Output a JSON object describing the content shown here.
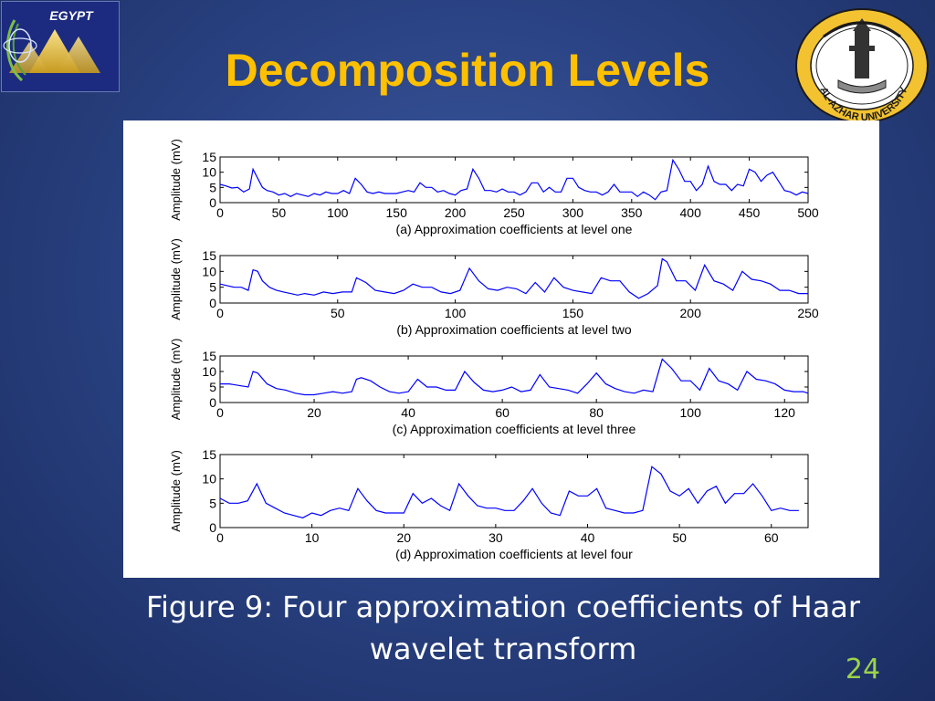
{
  "slide": {
    "title": "Decomposition Levels",
    "caption_line1": "Figure  9: Four approximation coefficients of Haar",
    "caption_line2": "wavelet transform",
    "page_number": "24",
    "logo_left_text": "EGYPT",
    "logo_right_text": "AL-AZHAR UNIVERSITY",
    "colors": {
      "title": "#ffc000",
      "page_number": "#9bd34a",
      "signal": "#0000ff"
    }
  },
  "chart_data": [
    {
      "type": "line",
      "xlabel": "(a) Approximation coefficients at level one",
      "ylabel": "Amplitude (mV)",
      "xlim": [
        0,
        500
      ],
      "ylim": [
        0,
        15
      ],
      "xticks": [
        0,
        50,
        100,
        150,
        200,
        250,
        300,
        350,
        400,
        450,
        500
      ],
      "yticks": [
        0,
        5,
        10,
        15
      ],
      "series": [
        {
          "x": [
            0,
            5,
            10,
            15,
            20,
            25,
            28,
            32,
            36,
            40,
            45,
            50,
            55,
            60,
            65,
            70,
            75,
            80,
            85,
            90,
            95,
            100,
            105,
            110,
            115,
            120,
            125,
            130,
            135,
            140,
            145,
            150,
            155,
            160,
            165,
            170,
            175,
            180,
            185,
            190,
            195,
            200,
            205,
            210,
            215,
            220,
            225,
            230,
            235,
            240,
            245,
            250,
            255,
            260,
            265,
            270,
            275,
            280,
            285,
            290,
            295,
            300,
            305,
            310,
            315,
            320,
            325,
            330,
            335,
            340,
            345,
            350,
            355,
            360,
            365,
            370,
            375,
            380,
            385,
            390,
            395,
            400,
            405,
            410,
            415,
            420,
            425,
            430,
            435,
            440,
            445,
            450,
            455,
            460,
            465,
            470,
            475,
            480,
            485,
            490,
            495,
            500
          ],
          "y": [
            6,
            5.5,
            4.8,
            5,
            3.5,
            4.5,
            11,
            8,
            5,
            4,
            3.5,
            2.5,
            3,
            2,
            3,
            2.5,
            2,
            3,
            2.5,
            3.5,
            3,
            3,
            4,
            3,
            8,
            6,
            3.5,
            3,
            3.5,
            3,
            3,
            3,
            3.5,
            4,
            3.5,
            6.5,
            5,
            5,
            3.5,
            4,
            3,
            2.5,
            4,
            4.5,
            11,
            8,
            4,
            4,
            3.5,
            4.5,
            3.5,
            3.5,
            2.5,
            3.5,
            6.5,
            6.5,
            3.5,
            5,
            3.5,
            3.5,
            8,
            8,
            5,
            4,
            3.5,
            3.5,
            2.5,
            3.5,
            6,
            3.5,
            3.5,
            3.5,
            2,
            3.5,
            2.5,
            1,
            3.5,
            4,
            14,
            11,
            7,
            7,
            4,
            6,
            12,
            7,
            6,
            6,
            4,
            6,
            5.5,
            11,
            10,
            7,
            9,
            10,
            7,
            4,
            3.5,
            2.5,
            3.5,
            3
          ]
        }
      ]
    },
    {
      "type": "line",
      "xlabel": "(b) Approximation coefficients at level two",
      "ylabel": "Amplitude (mV)",
      "xlim": [
        0,
        250
      ],
      "ylim": [
        0,
        15
      ],
      "xticks": [
        0,
        50,
        100,
        150,
        200,
        250
      ],
      "yticks": [
        0,
        5,
        10,
        15
      ],
      "series": [
        {
          "x": [
            0,
            3,
            6,
            9,
            12,
            14,
            16,
            18,
            21,
            24,
            27,
            30,
            33,
            36,
            40,
            44,
            48,
            52,
            56,
            58,
            62,
            66,
            70,
            74,
            78,
            82,
            86,
            90,
            94,
            98,
            102,
            106,
            110,
            114,
            118,
            122,
            126,
            130,
            134,
            138,
            142,
            146,
            150,
            154,
            158,
            162,
            166,
            170,
            174,
            178,
            182,
            186,
            188,
            190,
            194,
            198,
            202,
            206,
            210,
            214,
            218,
            222,
            226,
            230,
            234,
            238,
            242,
            246,
            250
          ],
          "y": [
            6,
            5.5,
            5,
            5,
            4,
            10.5,
            10,
            7,
            5,
            4,
            3.5,
            3,
            2.5,
            3,
            2.5,
            3.5,
            3,
            3.5,
            3.5,
            8,
            6.5,
            4,
            3.5,
            3,
            4,
            6,
            5,
            5,
            3.5,
            3,
            4,
            11,
            7,
            4.5,
            4,
            5,
            4.5,
            3,
            6.5,
            3.5,
            8,
            5,
            4,
            3.5,
            3,
            8,
            7,
            7,
            3.5,
            1.5,
            3,
            5.5,
            14,
            13,
            7,
            7,
            4,
            12,
            7,
            6,
            4,
            10,
            7.5,
            7,
            6,
            4,
            4,
            3,
            3
          ]
        }
      ]
    },
    {
      "type": "line",
      "xlabel": "(c) Approximation coefficients at level three",
      "ylabel": "Amplitude (mV)",
      "xlim": [
        0,
        125
      ],
      "ylim": [
        0,
        15
      ],
      "xticks": [
        0,
        20,
        40,
        60,
        80,
        100,
        120
      ],
      "yticks": [
        0,
        5,
        10,
        15
      ],
      "series": [
        {
          "x": [
            0,
            2,
            4,
            6,
            7,
            8,
            10,
            12,
            14,
            16,
            18,
            20,
            22,
            24,
            26,
            28,
            29,
            30,
            32,
            34,
            36,
            38,
            40,
            42,
            44,
            46,
            48,
            50,
            52,
            54,
            56,
            58,
            60,
            62,
            64,
            66,
            68,
            70,
            72,
            74,
            76,
            78,
            80,
            82,
            84,
            86,
            88,
            90,
            92,
            94,
            96,
            98,
            100,
            102,
            104,
            106,
            108,
            110,
            112,
            114,
            116,
            118,
            120,
            122,
            124,
            125
          ],
          "y": [
            6,
            6,
            5.5,
            5,
            10,
            9.5,
            6,
            4.5,
            4,
            3,
            2.5,
            2.5,
            3,
            3.5,
            3,
            3.5,
            7.5,
            8,
            7,
            5,
            3.5,
            3,
            3.5,
            7.5,
            5,
            5,
            4,
            4,
            10,
            6.5,
            4,
            3.5,
            4,
            5,
            3.5,
            4,
            9,
            5,
            4.5,
            4,
            3,
            6,
            9.5,
            6,
            4.5,
            3.5,
            3,
            4,
            3.5,
            14,
            11,
            7,
            7,
            4,
            11,
            7,
            6,
            4,
            10,
            7.5,
            7,
            6,
            4,
            3.5,
            3.5,
            3
          ]
        }
      ]
    },
    {
      "type": "line",
      "xlabel": "(d) Approximation coefficients at level four",
      "ylabel": "Amplitude (mV)",
      "xlim": [
        0,
        64
      ],
      "ylim": [
        0,
        15
      ],
      "xticks": [
        0,
        10,
        20,
        30,
        40,
        50,
        60
      ],
      "yticks": [
        0,
        5,
        10,
        15
      ],
      "series": [
        {
          "x": [
            0,
            1,
            2,
            3,
            4,
            5,
            6,
            7,
            8,
            9,
            10,
            11,
            12,
            13,
            14,
            15,
            16,
            17,
            18,
            19,
            20,
            21,
            22,
            23,
            24,
            25,
            26,
            27,
            28,
            29,
            30,
            31,
            32,
            33,
            34,
            35,
            36,
            37,
            38,
            39,
            40,
            41,
            42,
            43,
            44,
            45,
            46,
            47,
            48,
            49,
            50,
            51,
            52,
            53,
            54,
            55,
            56,
            57,
            58,
            59,
            60,
            61,
            62,
            63
          ],
          "y": [
            6,
            5,
            5,
            5.5,
            9,
            5,
            4,
            3,
            2.5,
            2,
            3,
            2.5,
            3.5,
            4,
            3.5,
            8,
            5.5,
            3.5,
            3,
            3,
            3,
            7,
            5,
            6,
            4.5,
            3.5,
            9,
            6.5,
            4.5,
            4,
            4,
            3.5,
            3.5,
            5.5,
            8,
            5,
            3,
            2.5,
            7.5,
            6.5,
            6.5,
            8,
            4,
            3.5,
            3,
            3,
            3.5,
            12.5,
            11,
            7.5,
            6.5,
            8,
            5,
            7.5,
            8.5,
            5,
            7,
            7,
            9,
            6.5,
            3.5,
            4,
            3.5,
            3.5
          ]
        }
      ]
    }
  ]
}
